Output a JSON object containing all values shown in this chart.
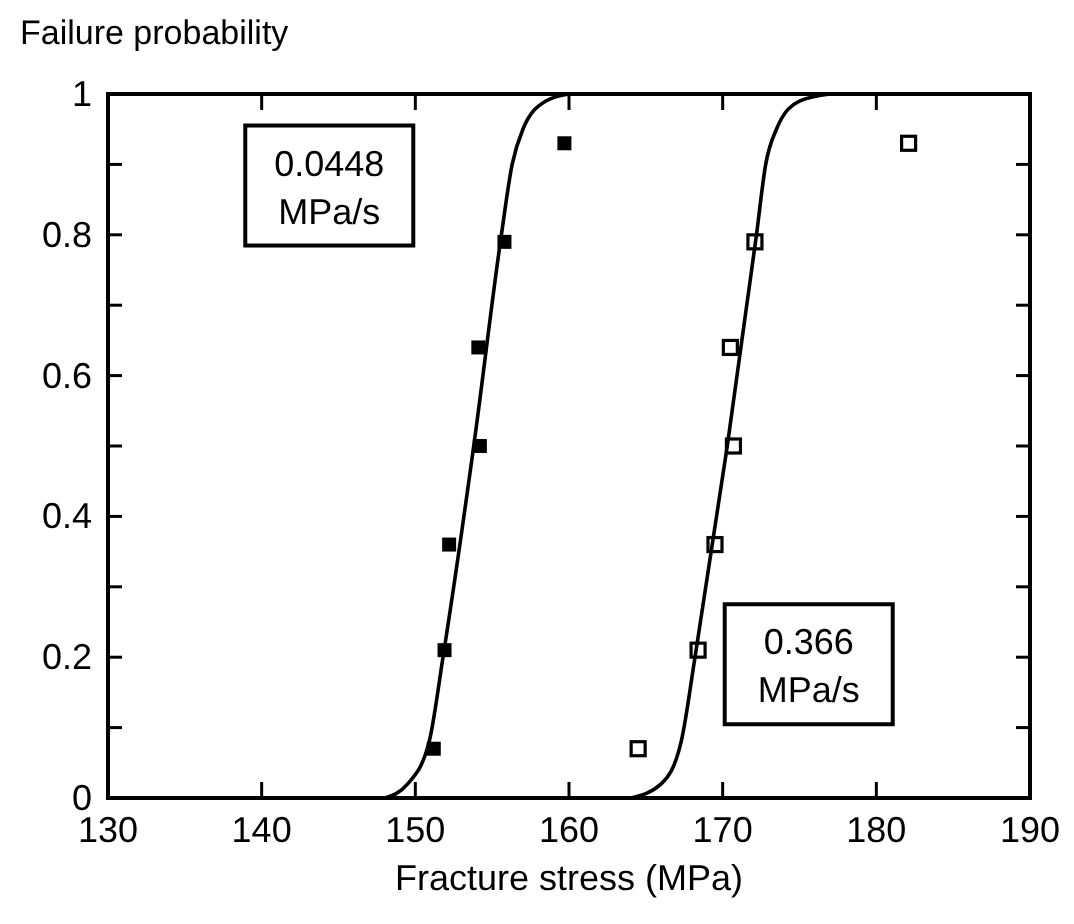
{
  "chart_data": {
    "type": "scatter",
    "xlabel": "Fracture stress (MPa)",
    "ylabel": "Failure probability",
    "xlim": [
      130,
      190
    ],
    "ylim": [
      0,
      1
    ],
    "xticks": [
      130,
      140,
      150,
      160,
      170,
      180,
      190
    ],
    "yticks": [
      0,
      {
        "value": 0.1,
        "label": null
      },
      {
        "value": 0.2,
        "label": "0.2"
      },
      {
        "value": 0.3,
        "label": null
      },
      {
        "value": 0.4,
        "label": "0.4"
      },
      {
        "value": 0.5,
        "label": null
      },
      {
        "value": 0.6,
        "label": "0.6"
      },
      {
        "value": 0.7,
        "label": null
      },
      {
        "value": 0.8,
        "label": "0.8"
      },
      {
        "value": 0.9,
        "label": null
      },
      1
    ],
    "grid": false,
    "legend": "top left",
    "marker": "square",
    "series": [
      {
        "name": "0.0448 MPa/s",
        "color": "#000000",
        "x": [
          151.2,
          151.9,
          152.2,
          154.2,
          154.1,
          155.8,
          159.7
        ],
        "values": [
          0.07,
          0.21,
          0.36,
          0.5,
          0.64,
          0.79,
          0.93
        ]
      },
      {
        "name": "0.366 MPa/s",
        "color": "#000000",
        "x": [
          164.5,
          168.4,
          169.5,
          170.7,
          170.5,
          172.1,
          182.1
        ],
        "values": [
          0.07,
          0.21,
          0.36,
          0.5,
          0.64,
          0.79,
          0.93
        ]
      },
      {
        "type": "line",
        "marker": "none",
        "color": "#000000",
        "x": [
          148,
          149.5,
          150.9,
          151.8,
          153.8,
          155.6,
          156.3,
          157,
          158.5,
          160
        ],
        "values": [
          0,
          0.02,
          0.08,
          0.2,
          0.5,
          0.8,
          0.9,
          0.95,
          0.99,
          1
        ]
      },
      {
        "type": "line",
        "marker": "none",
        "color": "#000000",
        "x": [
          164,
          166,
          167.3,
          168.2,
          170.3,
          172.2,
          172.8,
          173.5,
          175,
          177
        ],
        "values": [
          0,
          0.02,
          0.08,
          0.2,
          0.5,
          0.8,
          0.9,
          0.95,
          0.99,
          1
        ]
      }
    ]
  }
}
